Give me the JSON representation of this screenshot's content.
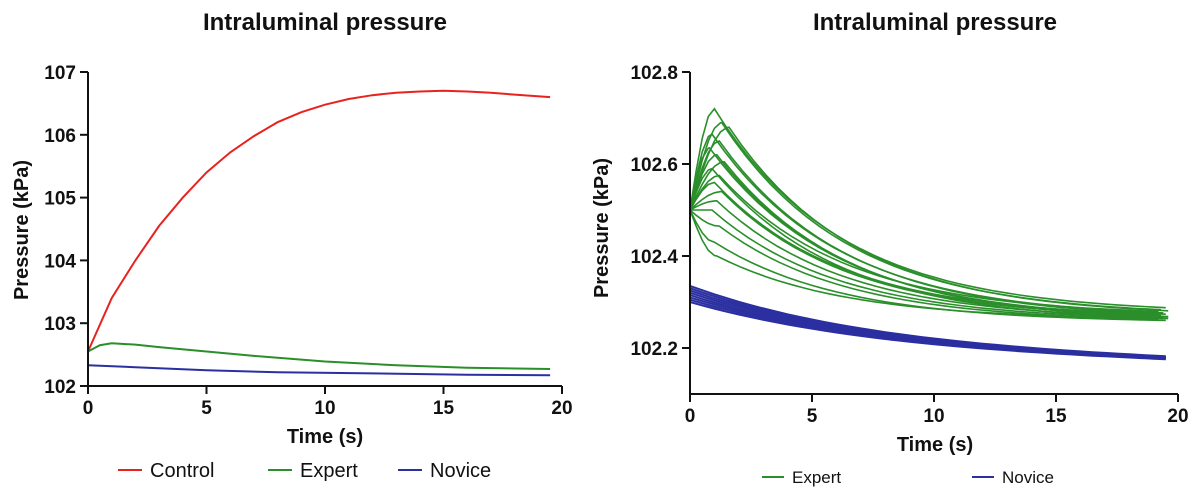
{
  "chart_data": [
    {
      "type": "line",
      "title": "Intraluminal pressure",
      "xlabel": "Time (s)",
      "ylabel": "Pressure (kPa)",
      "xlim": [
        0,
        20
      ],
      "ylim": [
        102,
        107
      ],
      "xticks": [
        "0",
        "5",
        "10",
        "15",
        "20"
      ],
      "yticks": [
        "102",
        "103",
        "104",
        "105",
        "106",
        "107"
      ],
      "grid": false,
      "legend_position": "bottom",
      "legend": [
        {
          "name": "Control",
          "color": "#e8231f"
        },
        {
          "name": "Expert",
          "color": "#2a8f2a"
        },
        {
          "name": "Novice",
          "color": "#2b2fa0"
        }
      ],
      "series": [
        {
          "name": "Control",
          "color": "#e8231f",
          "x": [
            0,
            1,
            2,
            3,
            4,
            5,
            6,
            7,
            8,
            9,
            10,
            11,
            12,
            13,
            14,
            15,
            16,
            17,
            18,
            19.5
          ],
          "y": [
            102.55,
            103.4,
            104.0,
            104.55,
            105.0,
            105.4,
            105.72,
            105.98,
            106.2,
            106.36,
            106.48,
            106.57,
            106.63,
            106.67,
            106.69,
            106.7,
            106.69,
            106.67,
            106.64,
            106.6
          ]
        },
        {
          "name": "Expert",
          "color": "#2a8f2a",
          "x": [
            0,
            0.5,
            1,
            2,
            3,
            5,
            7,
            10,
            13,
            16,
            19.5
          ],
          "y": [
            102.55,
            102.65,
            102.68,
            102.66,
            102.62,
            102.55,
            102.48,
            102.39,
            102.33,
            102.29,
            102.27
          ]
        },
        {
          "name": "Novice",
          "color": "#2b2fa0",
          "x": [
            0,
            2,
            5,
            8,
            12,
            16,
            19.5
          ],
          "y": [
            102.33,
            102.3,
            102.25,
            102.22,
            102.2,
            102.18,
            102.17
          ]
        }
      ]
    },
    {
      "type": "line",
      "title": "Intraluminal pressure",
      "xlabel": "Time (s)",
      "ylabel": "Pressure (kPa)",
      "xlim": [
        0,
        20
      ],
      "ylim": [
        102.1,
        102.8
      ],
      "xticks": [
        "0",
        "5",
        "10",
        "15",
        "20"
      ],
      "yticks": [
        "102.2",
        "102.4",
        "102.6",
        "102.8"
      ],
      "grid": false,
      "legend_position": "bottom",
      "legend": [
        {
          "name": "Expert",
          "color": "#2a8f2a"
        },
        {
          "name": "Novice",
          "color": "#2b2fa0"
        }
      ],
      "expert_peaks": [
        102.72,
        102.69,
        102.68,
        102.665,
        102.65,
        102.635,
        102.62,
        102.605,
        102.59,
        102.575,
        102.56,
        102.54,
        102.52,
        102.5,
        102.465,
        102.43,
        102.4
      ],
      "expert_peak_times": [
        1.0,
        1.3,
        1.6,
        0.9,
        1.2,
        0.8,
        1.1,
        1.4,
        0.9,
        1.2,
        1.0,
        1.3,
        1.1,
        0.9,
        1.2,
        1.0,
        1.1
      ],
      "expert_end_values": [
        102.275,
        102.27,
        102.268,
        102.265,
        102.262,
        102.26,
        102.258,
        102.256,
        102.255,
        102.27,
        102.265,
        102.262,
        102.26,
        102.258,
        102.256,
        102.255,
        102.26
      ],
      "expert_start_value": 102.5,
      "novice_start_values": [
        102.335,
        102.33,
        102.325,
        102.32,
        102.315,
        102.31,
        102.305,
        102.3
      ],
      "novice_end_value": 102.17
    }
  ]
}
